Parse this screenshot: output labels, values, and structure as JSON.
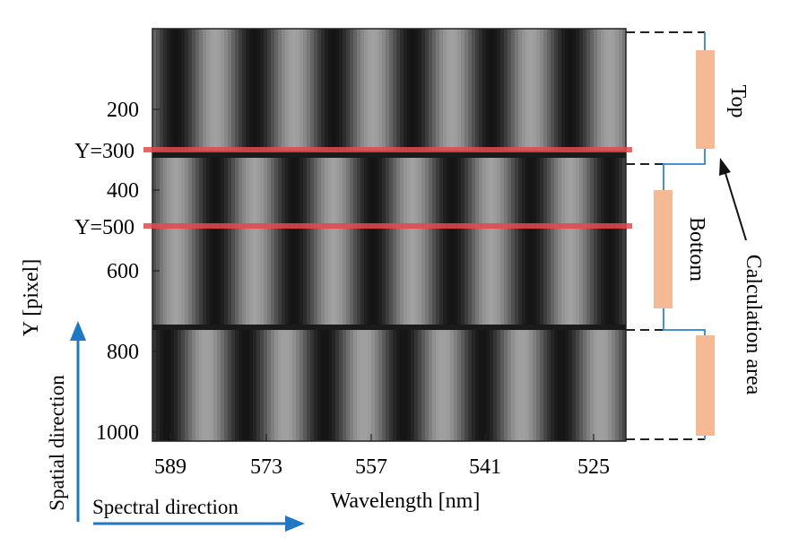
{
  "figure": {
    "y_ticks": [
      "200",
      "400",
      "600",
      "800",
      "1000"
    ],
    "x_ticks": [
      "589",
      "573",
      "557",
      "541",
      "525"
    ],
    "x_axis_title": "Wavelength [nm]",
    "y_axis_title": "Y [pixel]",
    "row_markers": [
      "Y=300",
      "Y=500"
    ],
    "segment_labels": {
      "top": "Top",
      "bottom": "Bottom"
    },
    "calc_area_label": "Calculation area",
    "spatial_direction_label": "Spatial direction",
    "spectral_direction_label": "Spectral direction",
    "colors": {
      "marker_line": "#e8484a",
      "direction_arrow": "#1f78c1",
      "calc_bar": "#f4b995",
      "bracket_line": "#4a90d0"
    }
  }
}
